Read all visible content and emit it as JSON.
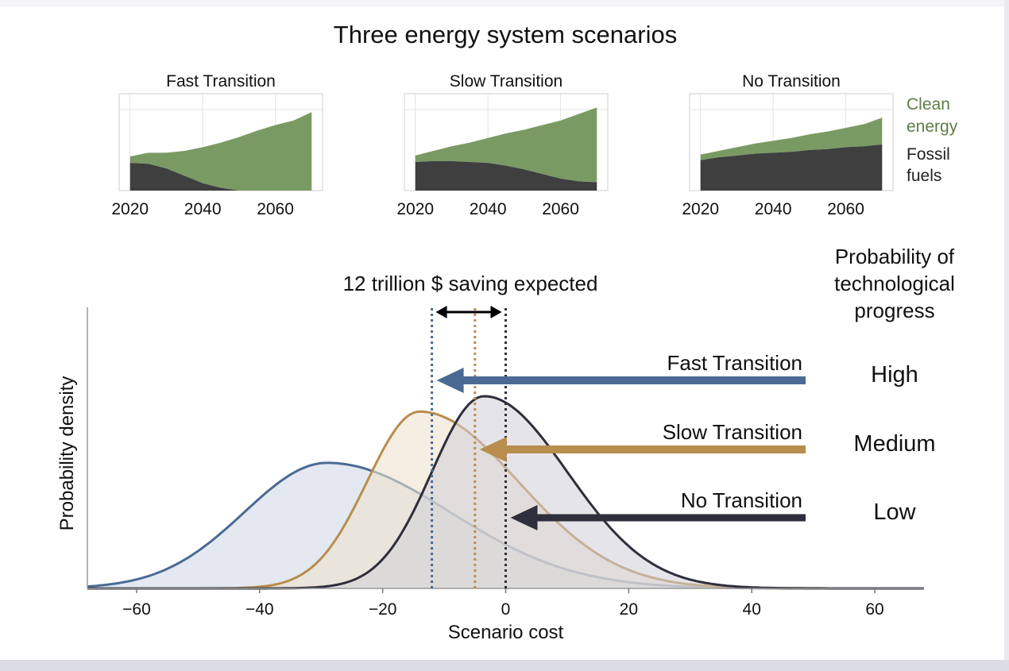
{
  "figure": {
    "title": "Three energy system scenarios",
    "legend": {
      "clean_label_line1": "Clean",
      "clean_label_line2": "energy",
      "fossil_label_line1": "Fossil",
      "fossil_label_line2": "fuels"
    },
    "probability_header": {
      "line1": "Probability of",
      "line2": "technological",
      "line3": "progress"
    },
    "saving_annotation": "12 trillion $ saving expected"
  },
  "colors": {
    "clean": "#7a9a63",
    "fossil": "#3f3f40",
    "fast": "#4a6a94",
    "slow": "#b98d4e",
    "none": "#2e2e3c",
    "fast_fill": "#dfe5ee",
    "slow_fill": "#efe3cf",
    "none_fill": "#cfcfd7"
  },
  "chart_data": [
    {
      "type": "area",
      "title": "Fast Transition",
      "x": [
        2020,
        2025,
        2030,
        2035,
        2040,
        2045,
        2050,
        2055,
        2060,
        2065,
        2070
      ],
      "x_ticks": [
        2020,
        2040,
        2060
      ],
      "xlim": [
        2017,
        2073
      ],
      "ylim": [
        0,
        1.05
      ],
      "series": [
        {
          "name": "Fossil fuels",
          "values": [
            0.3,
            0.29,
            0.24,
            0.16,
            0.08,
            0.03,
            0.0,
            0.0,
            0.0,
            0.0,
            0.0
          ]
        },
        {
          "name": "Clean energy",
          "values": [
            0.07,
            0.12,
            0.17,
            0.27,
            0.39,
            0.49,
            0.58,
            0.65,
            0.71,
            0.76,
            0.85
          ]
        }
      ]
    },
    {
      "type": "area",
      "title": "Slow Transition",
      "x": [
        2020,
        2025,
        2030,
        2035,
        2040,
        2045,
        2050,
        2055,
        2060,
        2065,
        2070
      ],
      "x_ticks": [
        2020,
        2040,
        2060
      ],
      "xlim": [
        2017,
        2073
      ],
      "ylim": [
        0,
        1.05
      ],
      "series": [
        {
          "name": "Fossil fuels",
          "values": [
            0.31,
            0.32,
            0.32,
            0.31,
            0.3,
            0.27,
            0.23,
            0.18,
            0.13,
            0.1,
            0.09
          ]
        },
        {
          "name": "Clean energy",
          "values": [
            0.07,
            0.11,
            0.16,
            0.21,
            0.27,
            0.35,
            0.43,
            0.53,
            0.63,
            0.73,
            0.81
          ]
        }
      ]
    },
    {
      "type": "area",
      "title": "No Transition",
      "x": [
        2020,
        2025,
        2030,
        2035,
        2040,
        2045,
        2050,
        2055,
        2060,
        2065,
        2070
      ],
      "x_ticks": [
        2020,
        2040,
        2060
      ],
      "xlim": [
        2017,
        2073
      ],
      "ylim": [
        0,
        1.05
      ],
      "series": [
        {
          "name": "Fossil fuels",
          "values": [
            0.33,
            0.36,
            0.38,
            0.4,
            0.41,
            0.42,
            0.44,
            0.45,
            0.47,
            0.48,
            0.5
          ]
        },
        {
          "name": "Clean energy",
          "values": [
            0.06,
            0.07,
            0.09,
            0.11,
            0.13,
            0.15,
            0.17,
            0.19,
            0.21,
            0.24,
            0.29
          ]
        }
      ]
    },
    {
      "type": "area",
      "title": "",
      "xlabel": "Scenario cost",
      "ylabel": "Probability density",
      "xlim": [
        -68,
        68
      ],
      "ylim": [
        0,
        1.1
      ],
      "x_ticks": [
        -60,
        -40,
        -20,
        0,
        20,
        40,
        60
      ],
      "series": [
        {
          "name": "Fast Transition",
          "mode": -29,
          "sigma_left": 13.5,
          "sigma_right": 20,
          "peak": 0.49,
          "mean_line": -12,
          "direction_label": "High"
        },
        {
          "name": "Slow Transition",
          "mode": -14,
          "sigma_left": 8.5,
          "sigma_right": 16,
          "peak": 0.69,
          "mean_line": -5,
          "direction_label": "Medium"
        },
        {
          "name": "No Transition",
          "mode": -3.5,
          "sigma_left": 8.5,
          "sigma_right": 13.5,
          "peak": 0.75,
          "mean_line": 0,
          "direction_label": "Low"
        }
      ]
    }
  ]
}
